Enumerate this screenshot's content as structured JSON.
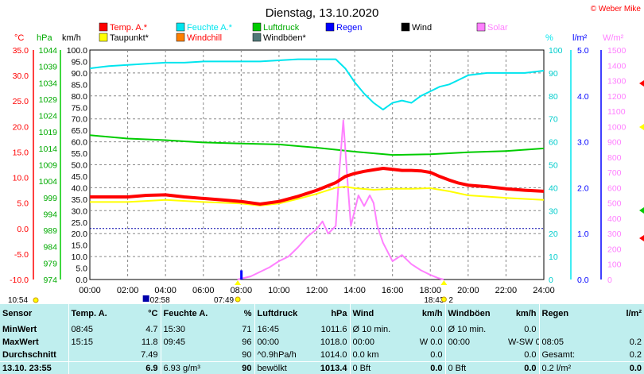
{
  "title": "Dienstag, 13.10.2020",
  "copyright": "© Weber Mike",
  "legend": [
    {
      "label": "Temp. A.*",
      "color": "#ff0000"
    },
    {
      "label": "Feuchte A.*",
      "color": "#00e5ee"
    },
    {
      "label": "Luftdruck",
      "color": "#00cc00"
    },
    {
      "label": "Regen",
      "color": "#0000ff"
    },
    {
      "label": "Wind",
      "color": "#000000"
    },
    {
      "label": "Solar",
      "color": "#ff80ff"
    },
    {
      "label": "Taupunkt*",
      "color": "#ffff00"
    },
    {
      "label": "Windchill",
      "color": "#ff8000"
    },
    {
      "label": "Windböen*",
      "color": "#507878"
    }
  ],
  "units": {
    "temp": "°C",
    "press": "hPa",
    "wind": "km/h",
    "hum": "%",
    "rain": "l/m²",
    "solar": "W/m²"
  },
  "axes": {
    "temp_ticks": [
      "35.0",
      "30.0",
      "25.0",
      "20.0",
      "15.0",
      "10.0",
      "5.0",
      "0.0",
      "-5.0",
      "-10.0"
    ],
    "press_ticks": [
      "1044",
      "1039",
      "1034",
      "1029",
      "1024",
      "1019",
      "1014",
      "1009",
      "1004",
      "999",
      "994",
      "989",
      "984",
      "979",
      "974"
    ],
    "wind_ticks": [
      "100.0",
      "95.0",
      "90.0",
      "85.0",
      "80.0",
      "75.0",
      "70.0",
      "65.0",
      "60.0",
      "55.0",
      "50.0",
      "45.0",
      "40.0",
      "35.0",
      "30.0",
      "25.0",
      "20.0",
      "15.0",
      "10.0",
      "5.0",
      "0.0"
    ],
    "hum_ticks": [
      "100",
      "90",
      "80",
      "70",
      "60",
      "50",
      "40",
      "30",
      "20",
      "10",
      "0"
    ],
    "rain_ticks": [
      "5.0",
      "4.0",
      "3.0",
      "2.0",
      "1.0",
      "0.0"
    ],
    "solar_ticks": [
      "1500",
      "1400",
      "1300",
      "1200",
      "1100",
      "1000",
      "900",
      "800",
      "700",
      "600",
      "500",
      "400",
      "300",
      "200",
      "100",
      "0"
    ],
    "x_ticks": [
      "00:00",
      "02:00",
      "04:00",
      "06:00",
      "08:00",
      "10:00",
      "12:00",
      "14:00",
      "16:00",
      "18:00",
      "20:00",
      "22:00",
      "24:00"
    ]
  },
  "sun_markers": {
    "sunrise": "07:49",
    "sunset": "18:43",
    "moonrise": "02:58",
    "moon_time": "10:54",
    "moon_extra": "2"
  },
  "chart_data": {
    "type": "line",
    "x_unit": "hours",
    "xlim": [
      0,
      24
    ],
    "series": [
      {
        "name": "Temp. A.*",
        "axis": "°C",
        "ylim": [
          -10,
          35
        ],
        "x": [
          0,
          1,
          2,
          3,
          4,
          5,
          6,
          7,
          8,
          9,
          10,
          11,
          12,
          13,
          13.5,
          14,
          14.5,
          15,
          15.5,
          16,
          16.5,
          17,
          17.5,
          18,
          18.5,
          19,
          19.5,
          20,
          21,
          22,
          23,
          24
        ],
        "y": [
          6.2,
          6.2,
          6.2,
          6.5,
          6.6,
          6.2,
          5.9,
          5.6,
          5.3,
          4.8,
          5.3,
          6.3,
          7.5,
          9.0,
          10.2,
          10.8,
          11.2,
          11.5,
          11.8,
          11.6,
          11.4,
          11.4,
          11.3,
          11.0,
          10.2,
          9.5,
          8.9,
          8.5,
          8.2,
          7.8,
          7.5,
          7.3
        ]
      },
      {
        "name": "Taupunkt*",
        "axis": "°C",
        "ylim": [
          -10,
          35
        ],
        "x": [
          0,
          2,
          4,
          6,
          8,
          9,
          10,
          11,
          12,
          13,
          13.5,
          14,
          15,
          16,
          17,
          18,
          19,
          20,
          22,
          24
        ],
        "y": [
          5.2,
          5.2,
          5.6,
          5.2,
          4.9,
          4.5,
          4.9,
          5.8,
          6.8,
          8.0,
          8.2,
          7.9,
          7.6,
          7.8,
          7.8,
          7.9,
          7.3,
          6.5,
          6.0,
          5.6
        ]
      },
      {
        "name": "Feuchte A.*",
        "axis": "%",
        "ylim": [
          0,
          100
        ],
        "x": [
          0,
          1,
          2,
          3,
          4,
          5,
          6,
          7,
          8,
          9,
          10,
          11,
          12,
          13,
          13.5,
          14,
          14.5,
          15,
          15.5,
          16,
          16.5,
          17,
          17.5,
          18,
          18.5,
          19,
          19.5,
          20,
          21,
          22,
          23,
          24
        ],
        "y": [
          92,
          93,
          93.5,
          94,
          94.5,
          94.5,
          95,
          95,
          95,
          95,
          95.5,
          96,
          96,
          96,
          92,
          86,
          81,
          77,
          74,
          77,
          78,
          77,
          80,
          82,
          84,
          85,
          87,
          89,
          90,
          90,
          90,
          91
        ]
      },
      {
        "name": "Luftdruck",
        "axis": "hPa",
        "ylim": [
          974,
          1044
        ],
        "x": [
          0,
          2,
          4,
          6,
          8,
          10,
          12,
          14,
          16,
          18,
          20,
          22,
          24
        ],
        "y": [
          1018.0,
          1017.0,
          1016.5,
          1015.8,
          1015.5,
          1015.2,
          1014.2,
          1013.0,
          1012.0,
          1012.2,
          1012.8,
          1013.2,
          1014.0
        ]
      },
      {
        "name": "Solar",
        "axis": "W/m²",
        "ylim": [
          0,
          1500
        ],
        "x": [
          7.8,
          8.5,
          9,
          9.5,
          10,
          10.5,
          11,
          11.5,
          12,
          12.3,
          12.6,
          13,
          13.2,
          13.4,
          13.6,
          13.8,
          14,
          14.2,
          14.5,
          14.8,
          15,
          15.2,
          15.5,
          16,
          16.5,
          17,
          17.5,
          18,
          18.4,
          18.7
        ],
        "y": [
          0,
          20,
          50,
          80,
          120,
          150,
          210,
          280,
          330,
          380,
          300,
          350,
          720,
          1040,
          680,
          350,
          450,
          550,
          480,
          550,
          500,
          350,
          240,
          120,
          160,
          100,
          60,
          30,
          10,
          0
        ]
      },
      {
        "name": "Regen",
        "axis": "l/m²",
        "ylim": [
          0,
          5
        ],
        "x": [
          0,
          7.95,
          8.0,
          8.05,
          24
        ],
        "y": [
          0,
          0,
          0.2,
          0.2,
          0.2
        ]
      }
    ]
  },
  "stats": {
    "headers": [
      "Sensor",
      "Temp. A.",
      "°C",
      "Feuchte A.",
      "%",
      "Luftdruck",
      "hPa",
      "Wind",
      "km/h",
      "Windböen",
      "km/h",
      "Regen",
      "l/m²"
    ],
    "rows": [
      [
        "MinWert",
        "08:45",
        "4.7",
        "15:30",
        "71",
        "16:45",
        "1011.6",
        "Ø 10 min.",
        "0.0",
        "Ø 10 min.",
        "0.0",
        "",
        ""
      ],
      [
        "MaxWert",
        "15:15",
        "11.8",
        "09:45",
        "96",
        "00:00",
        "1018.0",
        "00:00",
        "W 0.0",
        "00:00",
        "W-SW 0.0",
        "08:05",
        "0.2"
      ],
      [
        "Durchschnitt",
        "",
        "7.49",
        "",
        "90",
        "^0.9hPa/h",
        "1014.0",
        "0.0 km",
        "0.0",
        "",
        "0.0",
        "Gesamt:",
        "0.2"
      ],
      [
        "13.10. 23:55",
        "",
        "6.9",
        "6.93 g/m³",
        "90",
        "bewölkt",
        "1013.4",
        "0 Bft",
        "0.0",
        "0 Bft",
        "0.0",
        "0.2 l/m²",
        "0.0"
      ]
    ]
  }
}
